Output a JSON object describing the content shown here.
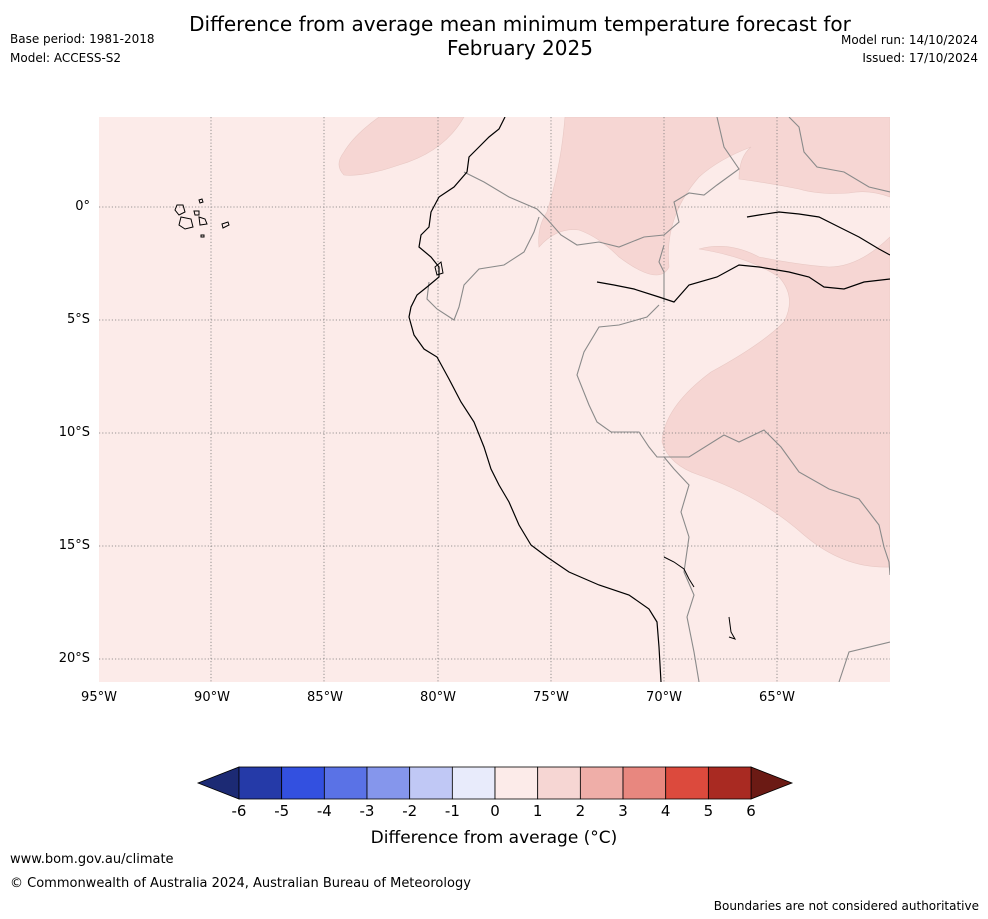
{
  "header": {
    "title_line1": "Difference from average mean minimum temperature forecast for",
    "title_line2": "February 2025",
    "base_period": "Base period: 1981-2018",
    "model": "Model: ACCESS-S2",
    "model_run": "Model run: 14/10/2024",
    "issued": "Issued: 17/10/2024"
  },
  "map": {
    "lon_labels": [
      "95°W",
      "90°W",
      "85°W",
      "80°W",
      "75°W",
      "70°W",
      "65°W"
    ],
    "lat_labels": [
      "0°",
      "5°S",
      "10°S",
      "15°S",
      "20°S"
    ],
    "background_color": "#fcebe9",
    "anomaly_color_1_2": "#f6d6d3"
  },
  "colorbar": {
    "ticks": [
      "-6",
      "-5",
      "-4",
      "-3",
      "-2",
      "-1",
      "0",
      "1",
      "2",
      "3",
      "4",
      "5",
      "6"
    ],
    "colors": [
      "#253aa8",
      "#3350e0",
      "#5a72e6",
      "#8596ec",
      "#c0c8f5",
      "#e8ebfb",
      "#fcebe9",
      "#f6d6d3",
      "#efaea8",
      "#e8877f",
      "#dc4a3d",
      "#a92a22"
    ],
    "low_extend_color": "#1c2a74",
    "high_extend_color": "#6b1a14",
    "label": "Difference from average (°C)"
  },
  "footer": {
    "website": "www.bom.gov.au/climate",
    "copyright": "© Commonwealth of Australia 2024, Australian Bureau of Meteorology",
    "disclaimer": "Boundaries are not considered authoritative"
  }
}
